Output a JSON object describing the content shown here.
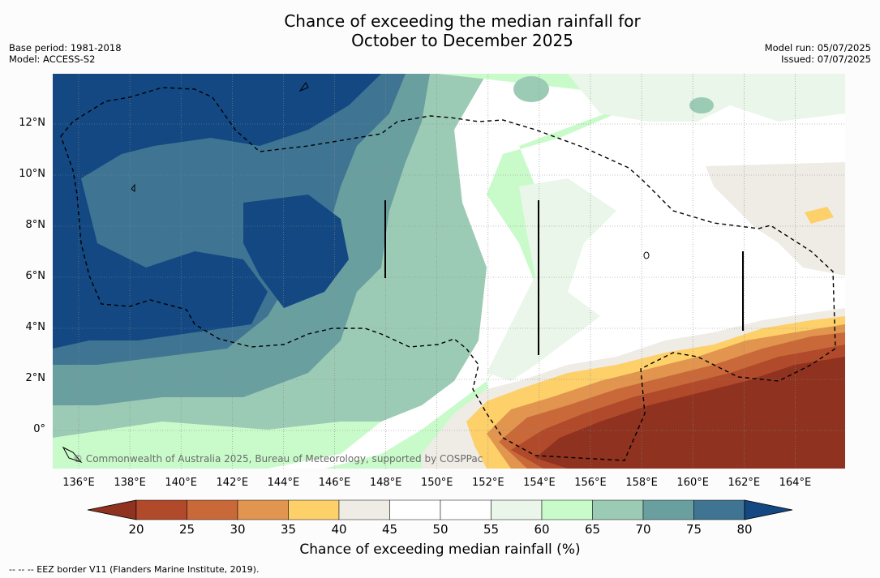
{
  "header": {
    "title_line1": "Chance of exceeding the median rainfall for",
    "title_line2": "October to December 2025",
    "base_period": "Base period: 1981-2018",
    "model": "Model: ACCESS-S2",
    "model_run": "Model run: 05/07/2025",
    "issued": "Issued: 07/07/2025"
  },
  "map": {
    "x_ticks": [
      "136°E",
      "138°E",
      "140°E",
      "142°E",
      "144°E",
      "146°E",
      "148°E",
      "150°E",
      "152°E",
      "154°E",
      "156°E",
      "158°E",
      "160°E",
      "162°E",
      "164°E"
    ],
    "y_ticks": [
      "12°N",
      "10°N",
      "8°N",
      "6°N",
      "4°N",
      "2°N",
      "0°"
    ],
    "copyright": "© Commonwealth of Australia 2025, Bureau of Meteorology, supported by COSPPac",
    "border_style": "dashed",
    "gridlines": true
  },
  "colorbar": {
    "ticks": [
      "20",
      "25",
      "30",
      "35",
      "40",
      "45",
      "50",
      "55",
      "60",
      "65",
      "70",
      "75",
      "80"
    ],
    "colors": [
      "#8f3220",
      "#b04a2a",
      "#c9693a",
      "#e1954e",
      "#fdd06a",
      "#efece6",
      "#ffffff",
      "#ffffff",
      "#eaf6ea",
      "#c9fbca",
      "#9ccbb5",
      "#6a9fa0",
      "#3f7593",
      "#134883"
    ],
    "label": "Chance of exceeding median rainfall (%)"
  },
  "footnote": "-- -- -- EEZ border V11 (Flanders Marine Institute, 2019)."
}
